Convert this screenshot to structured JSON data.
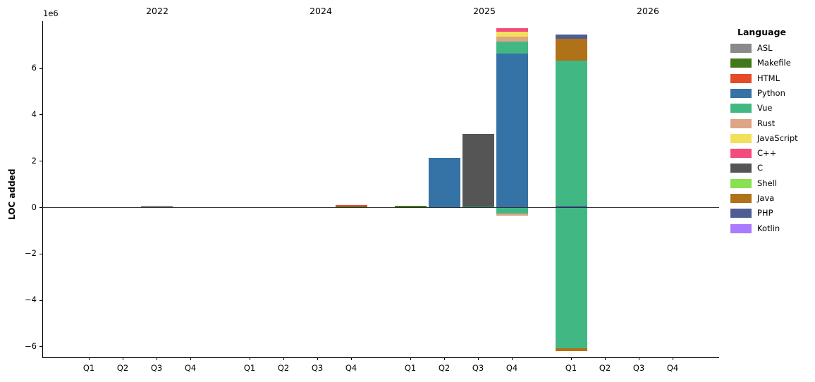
{
  "figure": {
    "ylabel": "LOC added",
    "offset_text": "1e6",
    "legend_title": "Language"
  },
  "chart_data": {
    "type": "bar",
    "stacked": true,
    "title": "",
    "xlabel": "",
    "ylabel": "LOC added",
    "y_unit_multiplier": 1000000,
    "ylim": [
      -6600000,
      8000000
    ],
    "grid": false,
    "legend_position": "right",
    "yticks": [
      6000000,
      4000000,
      2000000,
      0,
      -2000000,
      -4000000,
      -6000000
    ],
    "ytick_labels": [
      "6",
      "4",
      "2",
      "0",
      "−2",
      "−4",
      "−6"
    ],
    "years": [
      "2022",
      "2024",
      "2025",
      "2026"
    ],
    "quarters": [
      "Q1",
      "Q2",
      "Q3",
      "Q4"
    ],
    "legend": [
      {
        "label": "ASL",
        "color": "#8a8a8a"
      },
      {
        "label": "Makefile",
        "color": "#427819"
      },
      {
        "label": "HTML",
        "color": "#e34c26"
      },
      {
        "label": "Python",
        "color": "#3572a5"
      },
      {
        "label": "Vue",
        "color": "#41b883"
      },
      {
        "label": "Rust",
        "color": "#dea584"
      },
      {
        "label": "JavaScript",
        "color": "#f1e05a"
      },
      {
        "label": "C++",
        "color": "#f34b7d"
      },
      {
        "label": "C",
        "color": "#555555"
      },
      {
        "label": "Shell",
        "color": "#89e051"
      },
      {
        "label": "Java",
        "color": "#b07219"
      },
      {
        "label": "PHP",
        "color": "#4f5d95"
      },
      {
        "label": "Kotlin",
        "color": "#a97bff"
      }
    ],
    "bars": [
      {
        "year": "2022",
        "quarter": "Q3",
        "segments": [
          {
            "language": "ASL",
            "value": 70000
          }
        ]
      },
      {
        "year": "2024",
        "quarter": "Q4",
        "segments": [
          {
            "language": "Makefile",
            "value": 30000
          },
          {
            "language": "HTML",
            "value": 60000
          }
        ]
      },
      {
        "year": "2025",
        "quarter": "Q1",
        "segments": [
          {
            "language": "Makefile",
            "value": 50000
          }
        ]
      },
      {
        "year": "2025",
        "quarter": "Q2",
        "segments": [
          {
            "language": "Python",
            "value": 2130000
          }
        ]
      },
      {
        "year": "2025",
        "quarter": "Q3",
        "segments": [
          {
            "language": "Makefile",
            "value": 30000
          },
          {
            "language": "Python",
            "value": 40000
          },
          {
            "language": "C",
            "value": 3090000
          }
        ]
      },
      {
        "year": "2025",
        "quarter": "Q4",
        "segments": [
          {
            "language": "Python",
            "value": 6630000
          },
          {
            "language": "Vue",
            "value": 510000
          },
          {
            "language": "Rust",
            "value": 220000
          },
          {
            "language": "JavaScript",
            "value": 210000
          },
          {
            "language": "C++",
            "value": 150000
          },
          {
            "language": "Vue",
            "value": -240000
          },
          {
            "language": "Rust",
            "value": -100000
          }
        ]
      },
      {
        "year": "2026",
        "quarter": "Q1",
        "segments": [
          {
            "language": "Python",
            "value": 60000
          },
          {
            "language": "Vue",
            "value": 6260000
          },
          {
            "language": "Java",
            "value": 940000
          },
          {
            "language": "PHP",
            "value": 180000
          },
          {
            "language": "Vue",
            "value": -6050000
          },
          {
            "language": "Java",
            "value": -120000
          }
        ]
      }
    ]
  }
}
